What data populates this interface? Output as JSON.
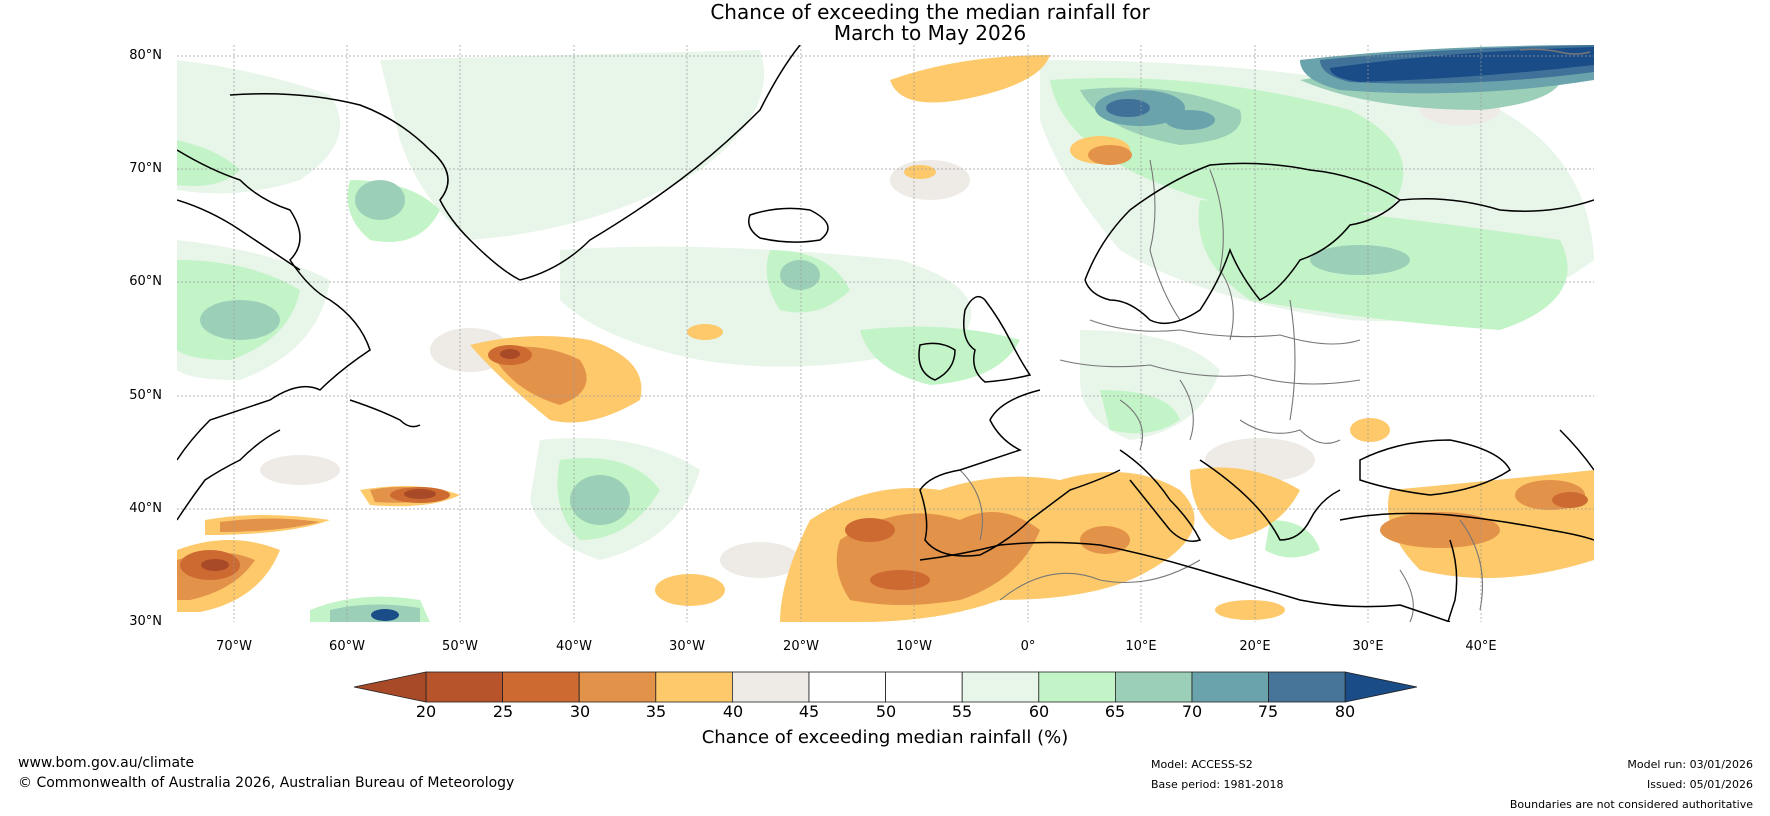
{
  "title": {
    "line1": "Chance of exceeding the median rainfall for",
    "line2": "March to May 2026"
  },
  "map": {
    "lat_labels": [
      "80°N",
      "70°N",
      "60°N",
      "50°N",
      "40°N",
      "30°N"
    ],
    "lon_labels": [
      "70°W",
      "60°W",
      "50°W",
      "40°W",
      "30°W",
      "20°W",
      "10°W",
      "0°",
      "10°E",
      "20°E",
      "30°E",
      "40°E"
    ],
    "colors": {
      "dry_strong": "#a84a28",
      "dry_mid": "#cc6a32",
      "dry": "#e3924a",
      "dry_light": "#fdc96a",
      "neutral_grey": "#eeebe6",
      "wet_light": "#e8f5e9",
      "wet": "#c3f4c8",
      "wet_mid": "#9bcfb8",
      "wet_strong": "#6aa3ab",
      "wet_very": "#3f7199",
      "wet_max": "#1a4c87",
      "coast": "#000000",
      "border": "#777777"
    }
  },
  "colorbar": {
    "ticks": [
      "20",
      "25",
      "30",
      "35",
      "40",
      "45",
      "50",
      "55",
      "60",
      "65",
      "70",
      "75",
      "80"
    ],
    "segment_colors": [
      "#b8542c",
      "#cc6a32",
      "#e3924a",
      "#fdc96a",
      "#eeebe6",
      "#ffffff",
      "#ffffff",
      "#e8f5e9",
      "#c3f4c8",
      "#9bcfb8",
      "#6aa3ab",
      "#467599"
    ],
    "low_extend_color": "#a84a28",
    "high_extend_color": "#1a4c87",
    "label": "Chance of exceeding median rainfall (%)"
  },
  "footer": {
    "website": "www.bom.gov.au/climate",
    "copyright": "© Commonwealth of Australia 2026, Australian Bureau of Meteorology",
    "model": "Model: ACCESS-S2",
    "base_period": "Base period: 1981-2018",
    "model_run": "Model run: 03/01/2026",
    "issued": "Issued: 05/01/2026",
    "disclaimer": "Boundaries are not considered authoritative"
  }
}
